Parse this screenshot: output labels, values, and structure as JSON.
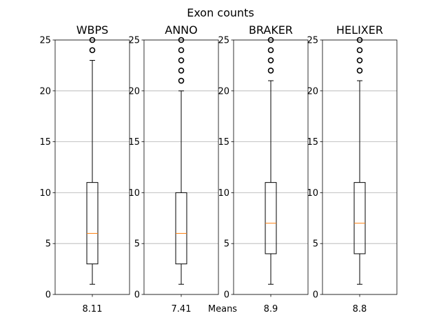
{
  "figure": {
    "suptitle": "Exon counts",
    "bottom_label": "Means"
  },
  "colors": {
    "box": "#000000",
    "median": "#ff7f0e",
    "grid": "#b0b0b0",
    "background": "#ffffff"
  },
  "chart_data": [
    {
      "type": "box",
      "title": "WBPS",
      "xtick_label": "8.11",
      "ylim": [
        0,
        25
      ],
      "yticks": [
        0,
        5,
        10,
        15,
        20,
        25
      ],
      "grid": "horizontal",
      "whislo": 1,
      "q1": 3,
      "median": 6,
      "q3": 11,
      "whishi": 23,
      "fliers": [
        24,
        25
      ]
    },
    {
      "type": "box",
      "title": "ANNO",
      "xtick_label": "7.41",
      "ylim": [
        0,
        25
      ],
      "yticks": [
        0,
        5,
        10,
        15,
        20,
        25
      ],
      "grid": "horizontal",
      "whislo": 1,
      "q1": 3,
      "median": 6,
      "q3": 10,
      "whishi": 20,
      "fliers": [
        21,
        22,
        23,
        24,
        25
      ]
    },
    {
      "type": "box",
      "title": "BRAKER",
      "xtick_label": "8.9",
      "ylim": [
        0,
        25
      ],
      "yticks": [
        0,
        5,
        10,
        15,
        20,
        25
      ],
      "grid": "horizontal",
      "whislo": 1,
      "q1": 4,
      "median": 7,
      "q3": 11,
      "whishi": 21,
      "fliers": [
        22,
        23,
        24,
        25
      ]
    },
    {
      "type": "box",
      "title": "HELIXER",
      "xtick_label": "8.8",
      "ylim": [
        0,
        25
      ],
      "yticks": [
        0,
        5,
        10,
        15,
        20,
        25
      ],
      "grid": "horizontal",
      "whislo": 1,
      "q1": 4,
      "median": 7,
      "q3": 11,
      "whishi": 21,
      "fliers": [
        22,
        23,
        24,
        25
      ]
    }
  ]
}
